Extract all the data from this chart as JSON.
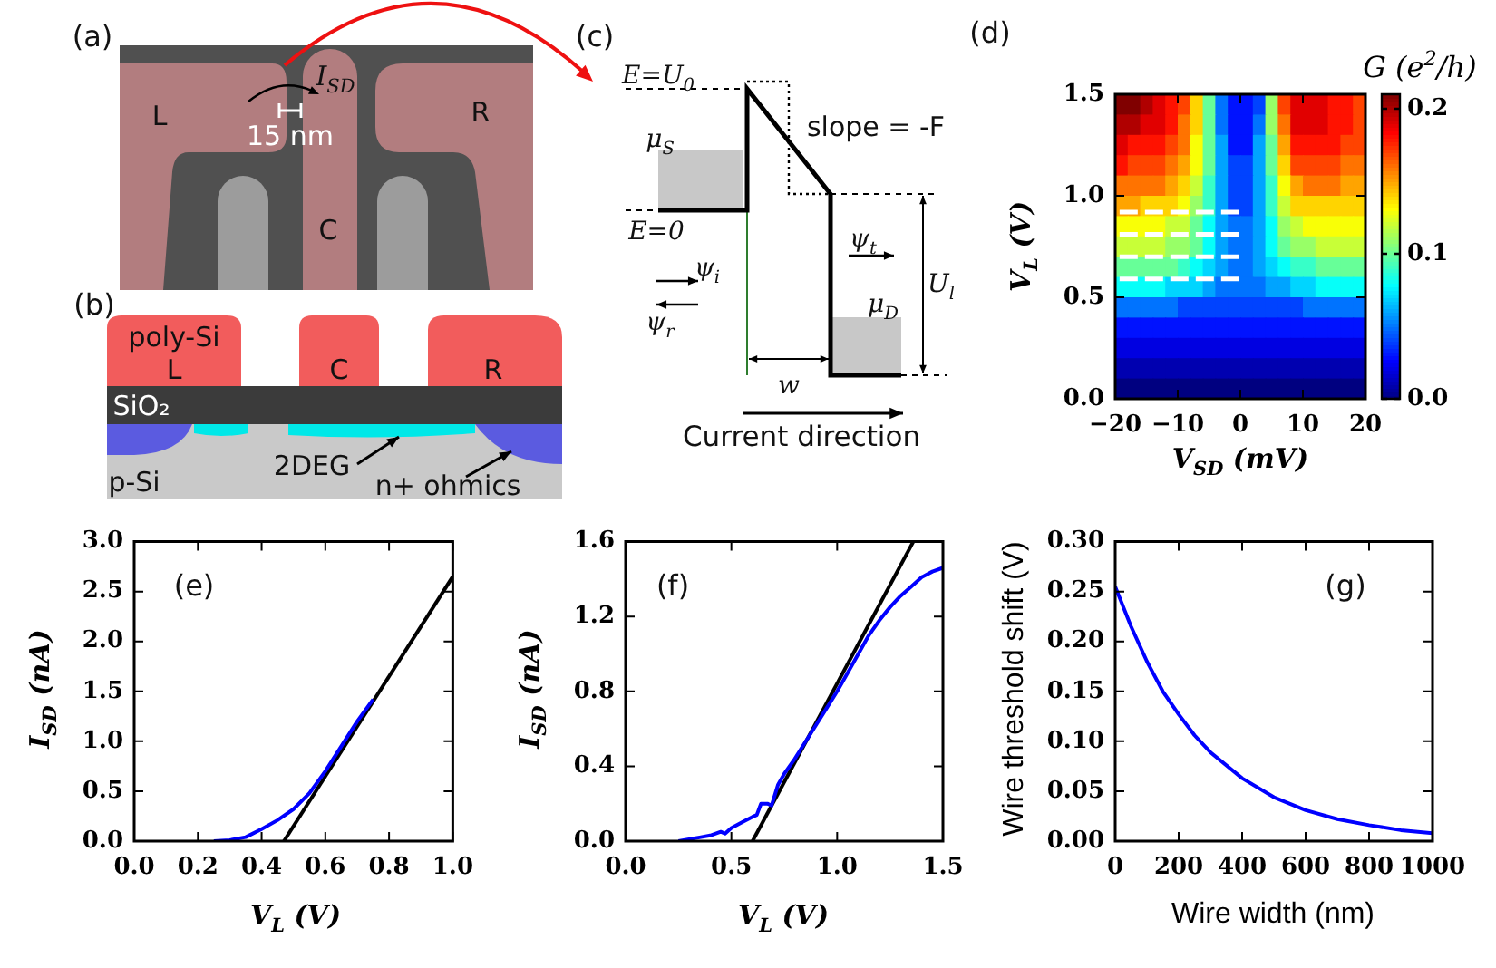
{
  "chart_data": [
    {
      "type": "other",
      "annotations": [
        "(a)",
        "L",
        "R",
        "C",
        "I$_{SD}$",
        "15 nm"
      ]
    },
    {
      "type": "other",
      "annotations": [
        "(b)",
        "poly-Si",
        "L",
        "C",
        "R",
        "SiO₂",
        "p-Si",
        "2DEG",
        "n+ ohmics"
      ]
    },
    {
      "type": "other",
      "annotations": [
        "(c)",
        "E=U$_{0}$",
        "slope = -F",
        "μ$_{S}$",
        "E=0",
        "ψ$_{i}$",
        "ψ$_{r}$",
        "ψ$_{t}$",
        "μ$_{D}$",
        "U$_{l}$",
        "w",
        "Current direction"
      ]
    },
    {
      "type": "heatmap",
      "xlabel": "V$_{SD}$ (mV)",
      "ylabel": "V$_{L}$ (V)",
      "clabel": "G (e$^{2}$/h)",
      "annotations": [
        "(d)"
      ],
      "xlim": [
        -20,
        20
      ],
      "ylim": [
        0,
        1.5
      ],
      "xticks": [
        {
          "value": -20,
          "label": "−20"
        },
        {
          "value": -10,
          "label": "−10"
        },
        0,
        10,
        20
      ],
      "yticks": [
        {
          "value": 0,
          "label": "0.0"
        },
        0.5,
        {
          "value": 1,
          "label": "1.0"
        },
        1.5
      ],
      "clim": [
        0,
        0.21
      ],
      "cticks": [
        {
          "value": 0,
          "label": "0.0"
        },
        0.1,
        0.2
      ],
      "line_style": "dashed",
      "cells": [
        [
          0.21,
          0.21,
          0.2,
          0.19,
          0.18,
          0.17,
          0.14,
          0.1,
          0.05,
          0.03,
          0.03,
          0.04,
          0.11,
          0.17,
          0.19,
          0.19,
          0.19,
          0.18,
          0.18,
          0.17
        ],
        [
          0.2,
          0.2,
          0.19,
          0.19,
          0.18,
          0.16,
          0.14,
          0.1,
          0.05,
          0.03,
          0.03,
          0.05,
          0.11,
          0.16,
          0.19,
          0.19,
          0.19,
          0.18,
          0.18,
          0.17
        ],
        [
          0.19,
          0.18,
          0.18,
          0.18,
          0.17,
          0.16,
          0.13,
          0.1,
          0.06,
          0.03,
          0.03,
          0.06,
          0.1,
          0.15,
          0.18,
          0.18,
          0.18,
          0.18,
          0.17,
          0.17
        ],
        [
          0.18,
          0.17,
          0.17,
          0.17,
          0.16,
          0.15,
          0.13,
          0.1,
          0.06,
          0.04,
          0.04,
          0.06,
          0.1,
          0.14,
          0.17,
          0.17,
          0.17,
          0.17,
          0.16,
          0.16
        ],
        [
          0.16,
          0.16,
          0.16,
          0.16,
          0.15,
          0.14,
          0.12,
          0.09,
          0.06,
          0.04,
          0.04,
          0.06,
          0.09,
          0.13,
          0.15,
          0.16,
          0.16,
          0.16,
          0.15,
          0.15
        ],
        [
          0.15,
          0.15,
          0.14,
          0.14,
          0.14,
          0.13,
          0.11,
          0.09,
          0.06,
          0.04,
          0.04,
          0.06,
          0.09,
          0.12,
          0.14,
          0.14,
          0.14,
          0.14,
          0.14,
          0.14
        ],
        [
          0.13,
          0.13,
          0.13,
          0.13,
          0.12,
          0.12,
          0.1,
          0.08,
          0.06,
          0.05,
          0.05,
          0.06,
          0.08,
          0.11,
          0.12,
          0.13,
          0.13,
          0.13,
          0.13,
          0.13
        ],
        [
          0.12,
          0.12,
          0.12,
          0.12,
          0.11,
          0.11,
          0.1,
          0.08,
          0.06,
          0.05,
          0.05,
          0.06,
          0.08,
          0.1,
          0.11,
          0.11,
          0.12,
          0.12,
          0.12,
          0.12
        ],
        [
          0.1,
          0.1,
          0.1,
          0.1,
          0.1,
          0.09,
          0.08,
          0.07,
          0.06,
          0.05,
          0.05,
          0.06,
          0.07,
          0.08,
          0.09,
          0.09,
          0.1,
          0.1,
          0.1,
          0.1
        ],
        [
          0.08,
          0.08,
          0.08,
          0.08,
          0.07,
          0.07,
          0.07,
          0.06,
          0.05,
          0.05,
          0.05,
          0.05,
          0.06,
          0.06,
          0.07,
          0.07,
          0.08,
          0.08,
          0.08,
          0.08
        ],
        [
          0.05,
          0.05,
          0.05,
          0.05,
          0.05,
          0.04,
          0.04,
          0.04,
          0.04,
          0.04,
          0.04,
          0.04,
          0.04,
          0.04,
          0.04,
          0.05,
          0.05,
          0.05,
          0.05,
          0.05
        ],
        [
          0.03,
          0.03,
          0.03,
          0.03,
          0.03,
          0.03,
          0.03,
          0.03,
          0.03,
          0.03,
          0.03,
          0.03,
          0.03,
          0.03,
          0.03,
          0.03,
          0.03,
          0.03,
          0.03,
          0.03
        ],
        [
          0.02,
          0.02,
          0.02,
          0.02,
          0.02,
          0.02,
          0.02,
          0.02,
          0.02,
          0.02,
          0.02,
          0.02,
          0.02,
          0.02,
          0.02,
          0.02,
          0.02,
          0.02,
          0.02,
          0.02
        ],
        [
          0.01,
          0.01,
          0.01,
          0.01,
          0.01,
          0.01,
          0.01,
          0.01,
          0.01,
          0.01,
          0.01,
          0.01,
          0.01,
          0.01,
          0.01,
          0.01,
          0.01,
          0.01,
          0.01,
          0.01
        ],
        [
          0.0,
          0.0,
          0.0,
          0.0,
          0.0,
          0.0,
          0.0,
          0.0,
          0.0,
          0.0,
          0.0,
          0.0,
          0.0,
          0.0,
          0.0,
          0.0,
          0.0,
          0.0,
          0.0,
          0.0
        ]
      ],
      "series": [
        {
          "type": "line",
          "color": "#ffffff",
          "x": [
            -19.3,
            0.8
          ],
          "values": [
            0.92,
            0.92
          ]
        },
        {
          "type": "line",
          "color": "#ffffff",
          "x": [
            -19.3,
            0.8
          ],
          "values": [
            0.81,
            0.81
          ]
        },
        {
          "type": "line",
          "color": "#ffffff",
          "x": [
            -19.3,
            0.8
          ],
          "values": [
            0.7,
            0.7
          ]
        },
        {
          "type": "line",
          "color": "#ffffff",
          "x": [
            -19.3,
            0.8
          ],
          "values": [
            0.59,
            0.59
          ]
        }
      ]
    },
    {
      "type": "line",
      "xlabel": "V$_{L}$ (V)",
      "ylabel": "I$_{SD}$ (nA)",
      "annotations": [
        "(e)"
      ],
      "xlim": [
        0,
        1
      ],
      "ylim": [
        0,
        3
      ],
      "xticks": [
        {
          "value": 0,
          "label": "0.0"
        },
        0.2,
        0.4,
        0.6,
        0.8,
        {
          "value": 1,
          "label": "1.0"
        }
      ],
      "yticks": [
        {
          "value": 0,
          "label": "0.0"
        },
        0.5,
        {
          "value": 1,
          "label": "1.0"
        },
        1.5,
        {
          "value": 2,
          "label": "2.0"
        },
        2.5,
        {
          "value": 3,
          "label": "3.0"
        }
      ],
      "series": [
        {
          "color": "#0000ff",
          "x": [
            0.25,
            0.3,
            0.35,
            0.4,
            0.45,
            0.5,
            0.55,
            0.6,
            0.65,
            0.7,
            0.75
          ],
          "values": [
            0,
            0.01,
            0.04,
            0.12,
            0.21,
            0.32,
            0.48,
            0.7,
            0.95,
            1.2,
            1.42
          ]
        },
        {
          "color": "#000000",
          "x": [
            0.47,
            1.0
          ],
          "values": [
            0,
            2.65
          ]
        }
      ]
    },
    {
      "type": "line",
      "xlabel": "V$_{L}$ (V)",
      "ylabel": "I$_{SD}$ (nA)",
      "annotations": [
        "(f)"
      ],
      "xlim": [
        0,
        1.5
      ],
      "ylim": [
        0,
        1.6
      ],
      "xticks": [
        {
          "value": 0,
          "label": "0.0"
        },
        0.5,
        {
          "value": 1,
          "label": "1.0"
        },
        1.5
      ],
      "yticks": [
        {
          "value": 0,
          "label": "0.0"
        },
        0.4,
        0.8,
        1.2,
        1.6
      ],
      "series": [
        {
          "color": "#0000ff",
          "x": [
            0.25,
            0.3,
            0.35,
            0.4,
            0.45,
            0.47,
            0.5,
            0.55,
            0.6,
            0.62,
            0.64,
            0.67,
            0.69,
            0.72,
            0.75,
            0.8,
            0.85,
            0.9,
            0.95,
            1.0,
            1.05,
            1.1,
            1.15,
            1.2,
            1.25,
            1.3,
            1.35,
            1.4,
            1.45,
            1.5
          ],
          "values": [
            0,
            0.01,
            0.02,
            0.03,
            0.05,
            0.04,
            0.07,
            0.1,
            0.13,
            0.14,
            0.2,
            0.2,
            0.19,
            0.3,
            0.36,
            0.44,
            0.53,
            0.62,
            0.71,
            0.8,
            0.9,
            1.0,
            1.1,
            1.18,
            1.25,
            1.31,
            1.36,
            1.41,
            1.44,
            1.46
          ]
        },
        {
          "color": "#000000",
          "x": [
            0.6,
            1.36
          ],
          "values": [
            0,
            1.6
          ]
        }
      ]
    },
    {
      "type": "line",
      "xlabel": "Wire width (nm)",
      "ylabel": "Wire threshold shift (V)",
      "annotations": [
        "(g)"
      ],
      "xlim": [
        0,
        1000
      ],
      "ylim": [
        0,
        0.3
      ],
      "xticks": [
        0,
        200,
        400,
        600,
        800,
        1000
      ],
      "yticks": [
        {
          "value": 0,
          "label": "0.00"
        },
        0.05,
        {
          "value": 0.1,
          "label": "0.10"
        },
        0.15,
        {
          "value": 0.2,
          "label": "0.20"
        },
        0.25,
        {
          "value": 0.3,
          "label": "0.30"
        }
      ],
      "series": [
        {
          "color": "#0000ff",
          "x": [
            0,
            50,
            100,
            150,
            200,
            250,
            300,
            400,
            500,
            600,
            700,
            800,
            900,
            1000
          ],
          "values": [
            0.255,
            0.215,
            0.18,
            0.15,
            0.127,
            0.106,
            0.089,
            0.063,
            0.044,
            0.031,
            0.022,
            0.016,
            0.011,
            0.008
          ]
        }
      ]
    }
  ]
}
